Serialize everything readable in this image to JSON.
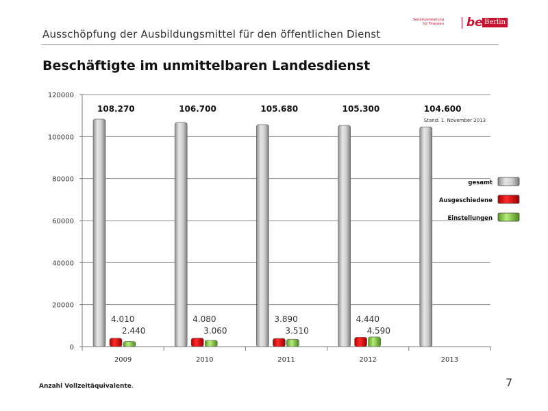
{
  "header": {
    "title": "Ausschöpfung der Ausbildungsmittel für den öffentlichen Dienst",
    "logo": {
      "department_line1": "Senatsverwaltung",
      "department_line2": "für Finanzen",
      "be_text": "be",
      "berlin_text": "Berlin"
    }
  },
  "page_title": "Beschäftigte im unmittelbaren Landesdienst",
  "chart_data": {
    "type": "bar",
    "categories": [
      "2009",
      "2010",
      "2011",
      "2012",
      "2013"
    ],
    "series": [
      {
        "name": "gesamt",
        "values": [
          108270,
          106700,
          105680,
          105300,
          104600
        ],
        "labels": [
          "108.270",
          "106.700",
          "105.680",
          "105.300",
          "104.600"
        ],
        "color": "#b8b8b8"
      },
      {
        "name": "Ausgeschiedene",
        "values": [
          4010,
          4080,
          3890,
          4440,
          null
        ],
        "labels": [
          "4.010",
          "4.080",
          "3.890",
          "4.440",
          ""
        ],
        "color": "#e00000"
      },
      {
        "name": "Einstellungen",
        "values": [
          2440,
          3060,
          3510,
          4590,
          null
        ],
        "labels": [
          "2.440",
          "3.060",
          "3.510",
          "4.590",
          ""
        ],
        "color": "#8fd14f"
      }
    ],
    "yticks": [
      0,
      20000,
      40000,
      60000,
      80000,
      100000,
      120000
    ],
    "ylim": [
      0,
      120000
    ],
    "grid": true,
    "legend_position": "right",
    "annotation": "Stand: 1. November 2013",
    "title": "",
    "xlabel": "",
    "ylabel": ""
  },
  "footnote": {
    "bold_text": "Anzahl Vollzeitäquivalente",
    "suffix": "."
  },
  "page_number": "7"
}
